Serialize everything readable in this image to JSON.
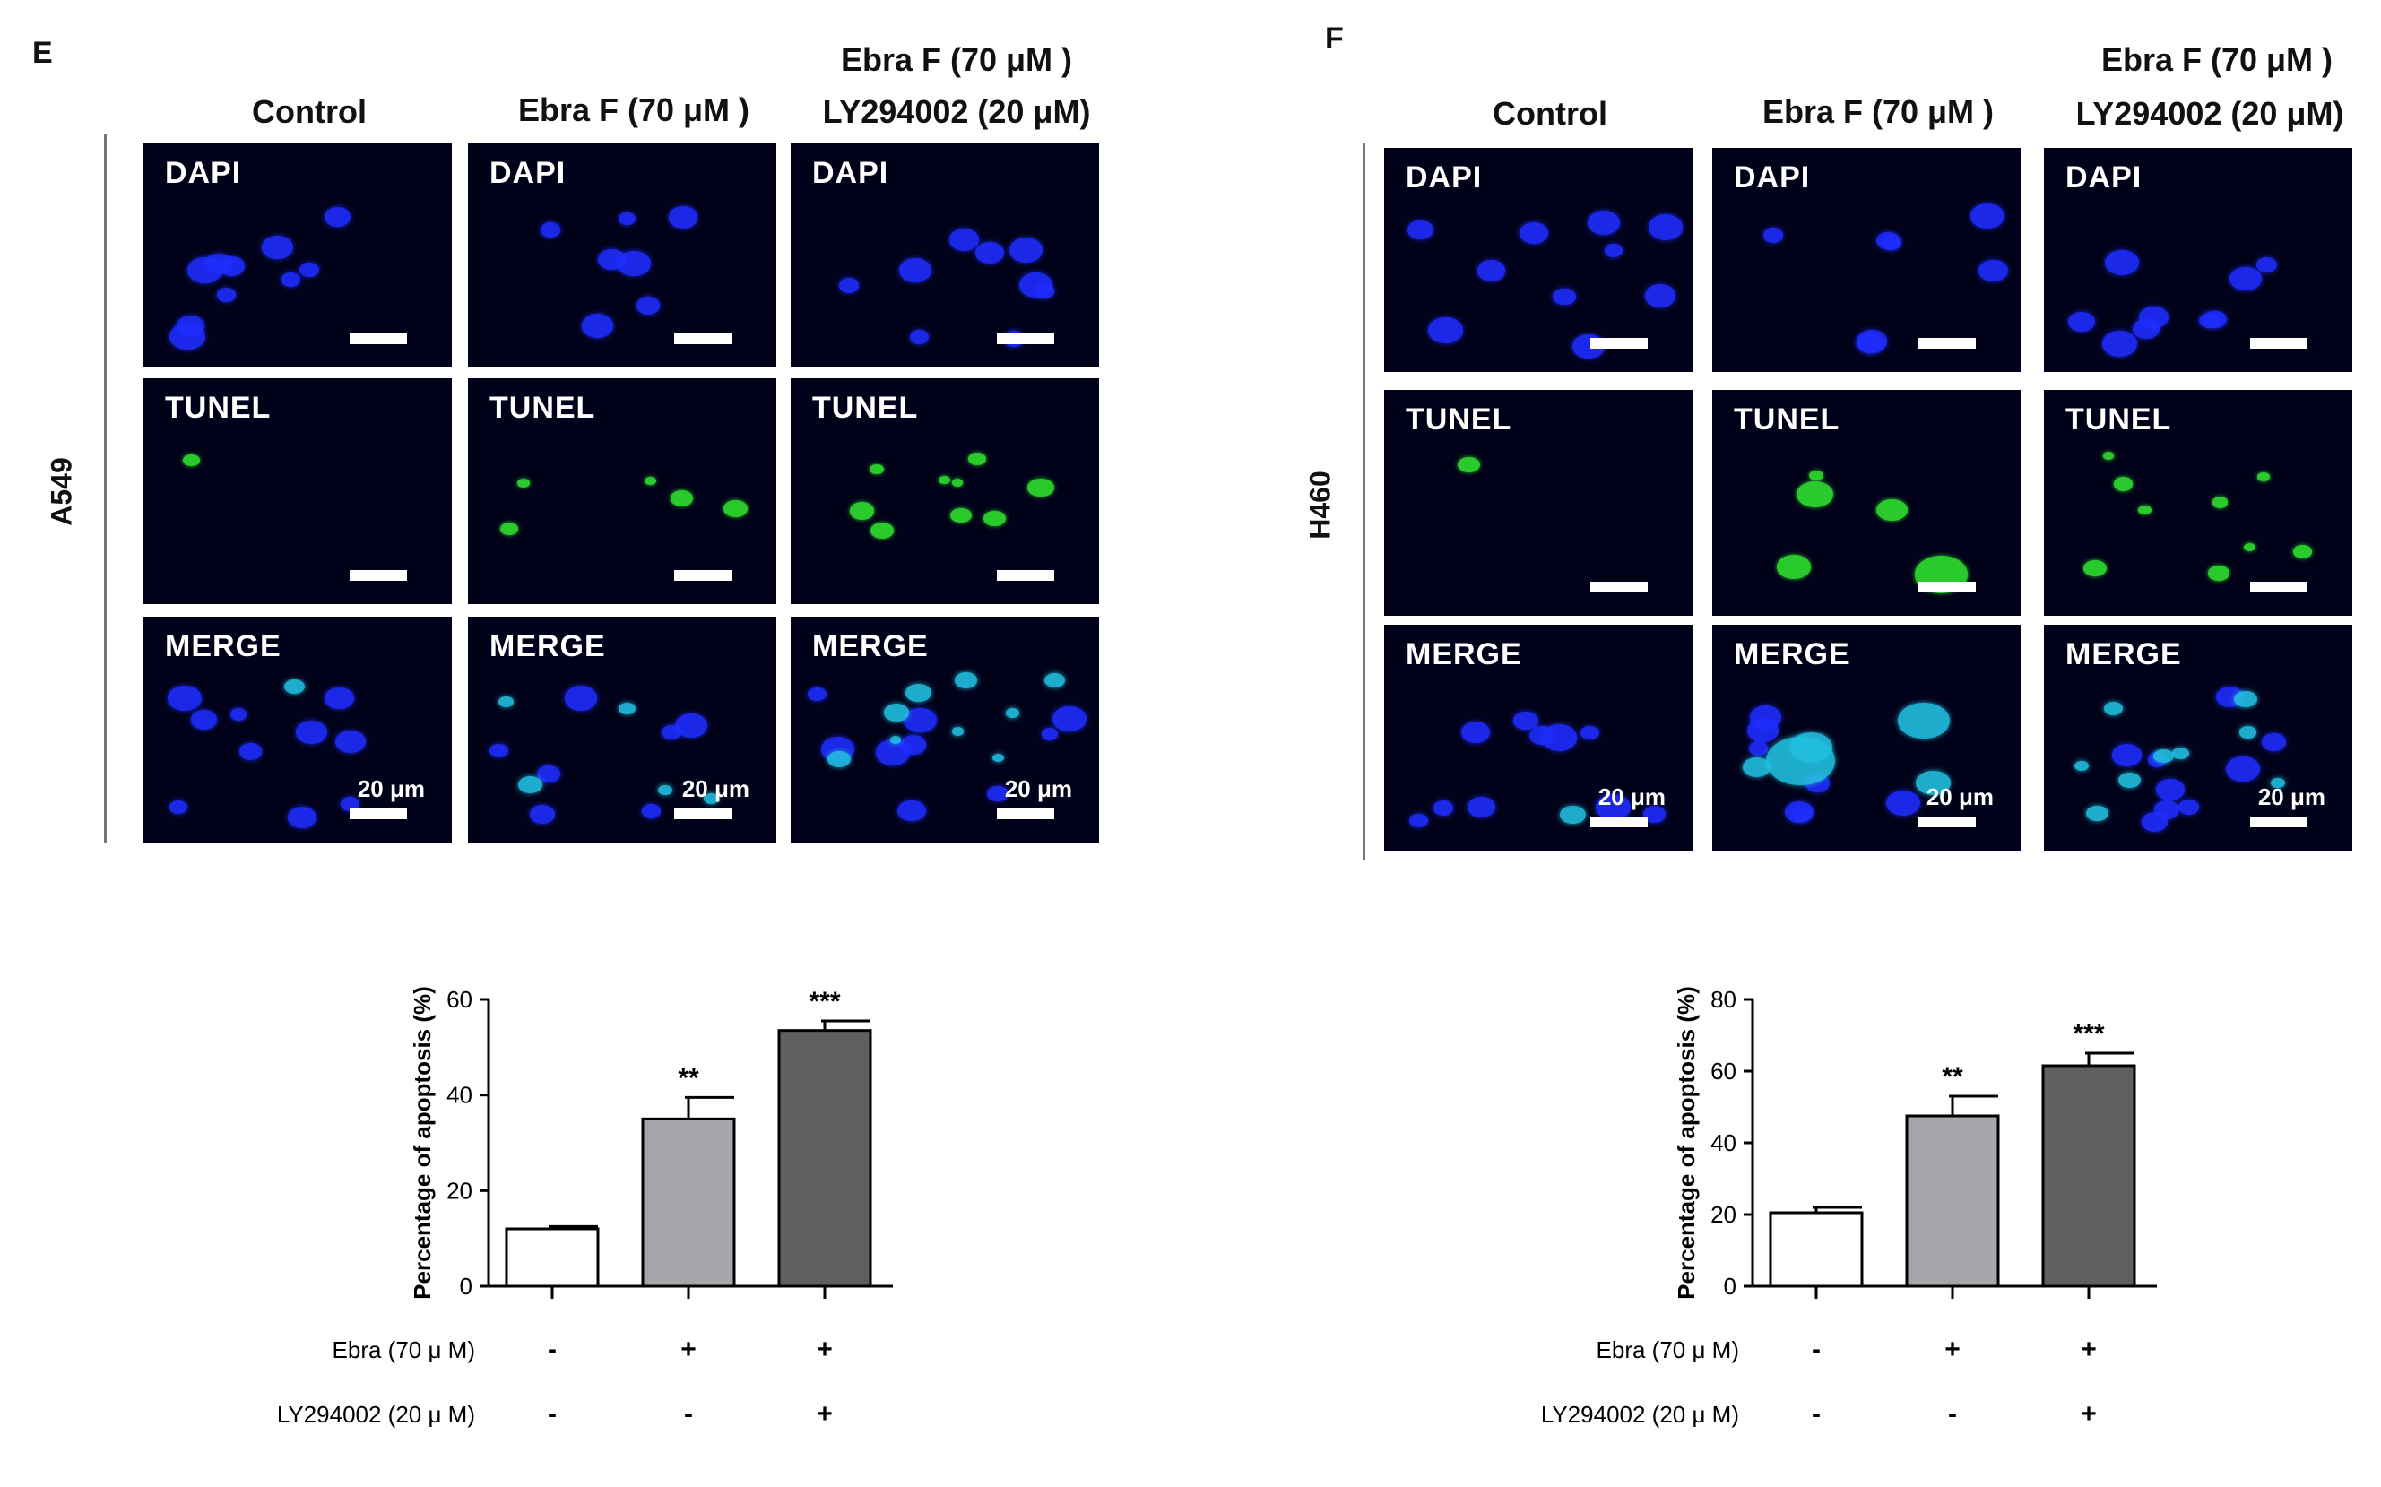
{
  "panels": [
    {
      "letter": "E",
      "cell_line": "A549",
      "columns": [
        {
          "line1": "",
          "line2": "Control"
        },
        {
          "line1": "",
          "line2": "Ebra F (70 μM )"
        },
        {
          "line1": "Ebra F (70 μM )",
          "line2": "LY294002 (20 μM)"
        }
      ],
      "rows": [
        "DAPI",
        "TUNEL",
        "MERGE"
      ],
      "scale_label": "20 μm"
    },
    {
      "letter": "F",
      "cell_line": "H460",
      "columns": [
        {
          "line1": "",
          "line2": "Control"
        },
        {
          "line1": "",
          "line2": "Ebra F (70 μM )"
        },
        {
          "line1": "Ebra F (70 μM )",
          "line2": "LY294002 (20 μM)"
        }
      ],
      "rows": [
        "DAPI",
        "TUNEL",
        "MERGE"
      ],
      "scale_label": "20 μm"
    }
  ],
  "colors": {
    "background_cell": "#01021a",
    "dapi": "#1f2dff",
    "tunel": "#2fe02f",
    "merge_cyan": "#22bfe0",
    "bar_control": "#ffffff",
    "bar_ebra": "#a6a6aa",
    "bar_combo": "#5f5f62"
  },
  "chart_data": [
    {
      "type": "bar",
      "title": "",
      "categories": [
        "Control",
        "Ebra",
        "Ebra + LY294002"
      ],
      "values": [
        12,
        35,
        53.5
      ],
      "errors": [
        0.5,
        4.5,
        2
      ],
      "significance": [
        "",
        "**",
        "***"
      ],
      "ylabel": "Percentage of apoptosis (%)",
      "xlabel": "",
      "ylim": [
        0,
        60
      ],
      "yticks": [
        0,
        20,
        40,
        60
      ],
      "treatment_rows": [
        {
          "label": "Ebra (70 μ M)",
          "marks": [
            "-",
            "+",
            "+"
          ]
        },
        {
          "label": "LY294002 (20 μ M)",
          "marks": [
            "-",
            "-",
            "+"
          ]
        }
      ]
    },
    {
      "type": "bar",
      "title": "",
      "categories": [
        "Control",
        "Ebra",
        "Ebra + LY294002"
      ],
      "values": [
        20.5,
        47.5,
        61.5
      ],
      "errors": [
        1.5,
        5.5,
        3.5
      ],
      "significance": [
        "",
        "**",
        "***"
      ],
      "ylabel": "Percentage of apoptosis (%)",
      "xlabel": "",
      "ylim": [
        0,
        80
      ],
      "yticks": [
        0,
        20,
        40,
        60,
        80
      ],
      "treatment_rows": [
        {
          "label": "Ebra (70 μ M)",
          "marks": [
            "-",
            "+",
            "+"
          ]
        },
        {
          "label": "LY294002 (20 μ M)",
          "marks": [
            "-",
            "-",
            "+"
          ]
        }
      ]
    }
  ]
}
